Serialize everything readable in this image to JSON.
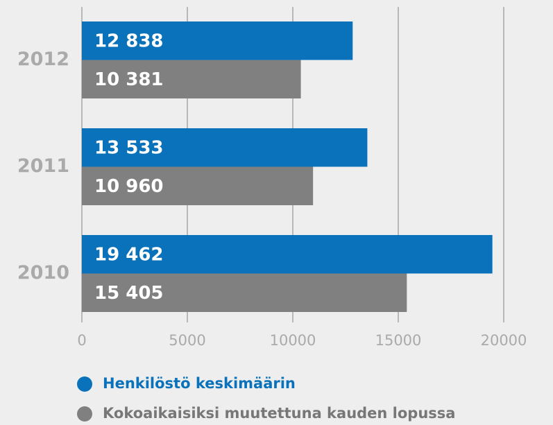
{
  "chart_data": {
    "type": "hbar",
    "categories": [
      "2012",
      "2011",
      "2010"
    ],
    "series": [
      {
        "name": "Henkilöstö keskimäärin",
        "color": "#0a72ba",
        "values": [
          12838,
          13533,
          19462
        ],
        "value_labels": [
          "12 838",
          "13 533",
          "19 462"
        ]
      },
      {
        "name": "Kokoaikaisiksi muutettuna kauden lopussa",
        "color": "#808080",
        "values": [
          10381,
          10960,
          15405
        ],
        "value_labels": [
          "10 381",
          "10 960",
          "15 405"
        ]
      }
    ],
    "xlim": [
      0,
      20000
    ],
    "xticks": [
      0,
      5000,
      10000,
      15000,
      20000
    ],
    "grid": true
  }
}
